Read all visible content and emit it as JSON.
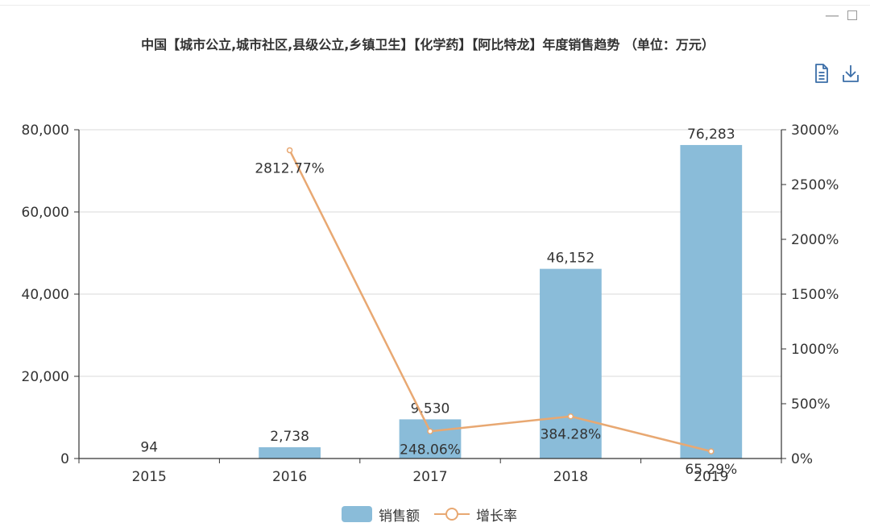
{
  "window": {
    "minimize_label": "—"
  },
  "title": "中国【城市公立,城市社区,县级公立,乡镇卫生】【化学药】【阿比特龙】年度销售趋势 （单位：万元）",
  "toolbar": {
    "data_view_icon": "document-icon",
    "save_icon": "download-icon"
  },
  "colors": {
    "bar": "#8abcd9",
    "line": "#e8a872",
    "axis": "#333333",
    "grid": "#d9d9d9",
    "text": "#333333"
  },
  "chart_data": {
    "type": "bar",
    "title": "中国【城市公立,城市社区,县级公立,乡镇卫生】【化学药】【阿比特龙】年度销售趋势 （单位：万元）",
    "categories": [
      "2015",
      "2016",
      "2017",
      "2018",
      "2019"
    ],
    "series": [
      {
        "name": "销售额",
        "type": "bar",
        "axis": "left",
        "values": [
          94,
          2738,
          9530,
          46152,
          76283
        ],
        "labels": [
          "94",
          "2,738",
          "9,530",
          "46,152",
          "76,283"
        ]
      },
      {
        "name": "增长率",
        "type": "line",
        "axis": "right",
        "values": [
          null,
          2812.77,
          248.06,
          384.28,
          65.29
        ],
        "labels": [
          "",
          "2812.77%",
          "248.06%",
          "384.28%",
          "65.29%"
        ]
      }
    ],
    "y_left": {
      "ylim": [
        0,
        80000
      ],
      "ticks": [
        "0",
        "20,000",
        "40,000",
        "60,000",
        "80,000"
      ]
    },
    "y_right": {
      "ylim": [
        0,
        3000
      ],
      "ticks": [
        "0%",
        "500%",
        "1000%",
        "1500%",
        "2000%",
        "2500%",
        "3000%"
      ]
    },
    "grid": true,
    "legend_position": "bottom-center"
  }
}
